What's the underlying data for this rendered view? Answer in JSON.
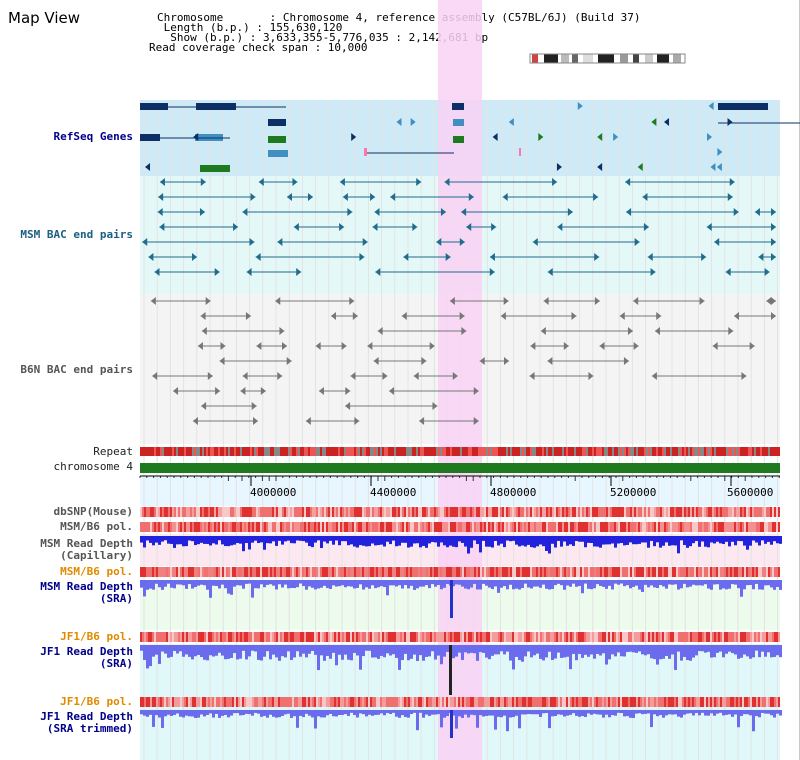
{
  "title": "Map View",
  "info": {
    "chromosome": "Chromosome       : Chromosome 4, reference assembly (C57BL/6J) (Build 37)",
    "length": " Length (b.p.) : 155,630,120",
    "show": "  Show (b.p.) : 3,633,355-5,776,035 : 2,142,681 bp",
    "span": "Read coverage check span : 10,000"
  },
  "labels": {
    "refseq": "RefSeq Genes",
    "msm_bac": "MSM BAC end pairs",
    "b6n_bac": "B6N BAC end pairs",
    "repeat": "Repeat",
    "chromosome": "chromosome 4",
    "dbsnp": "dbSNP(Mouse)",
    "msm_b6_pol": "MSM/B6 pol.",
    "msm_depth_cap_1": "MSM Read Depth",
    "msm_depth_cap_2": "(Capillary)",
    "msm_b6_pol_2": "MSM/B6 pol.",
    "msm_depth_sra_1": "MSM Read Depth",
    "msm_depth_sra_2": "(SRA)",
    "jf1_pol_1": "JF1/B6 pol.",
    "jf1_depth_sra_1": "JF1 Read Depth",
    "jf1_depth_sra_2": "(SRA)",
    "jf1_pol_2": "JF1/B6 pol.",
    "jf1_depth_trim_1": "JF1 Read Depth",
    "jf1_depth_trim_2": "(SRA trimmed)"
  },
  "axis": {
    "ticks": [
      "4000000",
      "4400000",
      "4800000",
      "5200000",
      "5600000"
    ],
    "range_bp": [
      3633355,
      5776035
    ]
  },
  "colors": {
    "highlight": "#f9d2f4",
    "refseq_bg": "#cfeaf7",
    "msm_bg": "#e4f8f8",
    "b6n_bg": "#f4f4f4",
    "chromosome": "#1e7a1e",
    "gene_dark": "#0d2f66",
    "gene_mid": "#3f8fc0",
    "gene_green": "#1e7a1e",
    "msm_feature": "#1f6c8c",
    "b6n_feature": "#777777",
    "depth_blue": "#2222dd",
    "depth_light": "#6b6bee"
  }
}
